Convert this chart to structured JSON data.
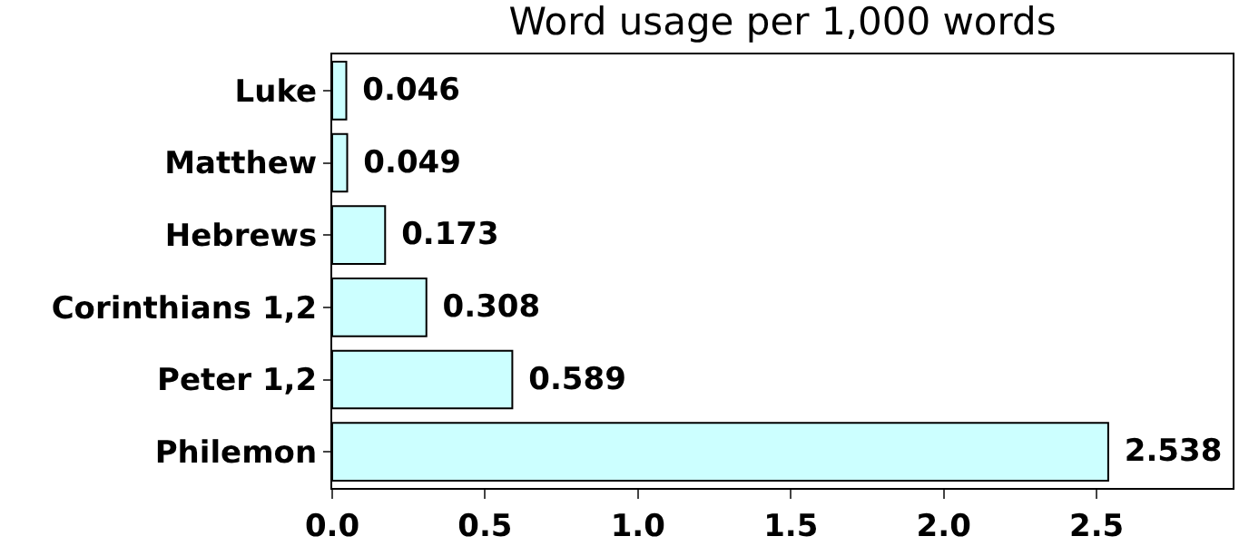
{
  "chart_data": {
    "type": "bar",
    "orientation": "horizontal",
    "title": "Word usage per 1,000 words",
    "categories": [
      "Luke",
      "Matthew",
      "Hebrews",
      "Corinthians 1,2",
      "Peter 1,2",
      "Philemon"
    ],
    "values": [
      0.046,
      0.049,
      0.173,
      0.308,
      0.589,
      2.538
    ],
    "color": "#ccffff",
    "xlim": [
      0,
      2.945
    ],
    "xticks": [
      {
        "value": 0,
        "label": "0.0"
      },
      {
        "value": 0.5,
        "label": "0.5"
      },
      {
        "value": 1,
        "label": "1.0"
      },
      {
        "value": 1.5,
        "label": "1.5"
      },
      {
        "value": 2,
        "label": "2.0"
      },
      {
        "value": 2.5,
        "label": "2.5"
      }
    ],
    "data_labels": true,
    "grid": false
  }
}
